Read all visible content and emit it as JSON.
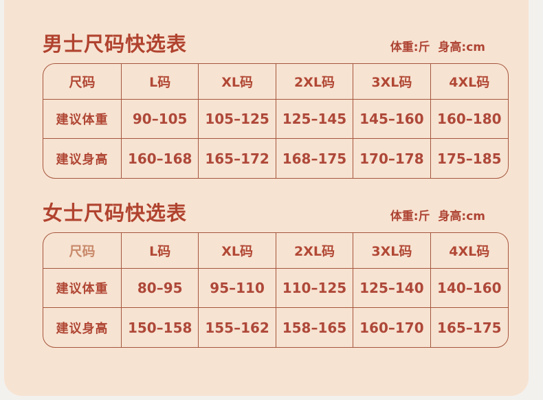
{
  "theme": {
    "outer_background": "#f3f1ee",
    "panel_background": "#f7e3d2",
    "table_border": "#a4553c",
    "title_color": "#b0432f",
    "value_color": "#ae4839",
    "muted_header_color": "#c8896a"
  },
  "sections": [
    {
      "title": "男士尺码快选表",
      "units": "体重:斤  身高:cm",
      "table": {
        "header": [
          "尺码",
          "L码",
          "XL码",
          "2XL码",
          "3XL码",
          "4XL码"
        ],
        "rows": [
          {
            "label": "建议体重",
            "values": [
              "90–105",
              "105–125",
              "125–145",
              "145–160",
              "160–180"
            ]
          },
          {
            "label": "建议身高",
            "values": [
              "160–168",
              "165–172",
              "168–175",
              "170–178",
              "175–185"
            ]
          }
        ]
      }
    },
    {
      "title": "女士尺码快选表",
      "units": "体重:斤  身高:cm",
      "table": {
        "header": [
          "尺码",
          "L码",
          "XL码",
          "2XL码",
          "3XL码",
          "4XL码"
        ],
        "rows": [
          {
            "label": "建议体重",
            "values": [
              "80–95",
              "95–110",
              "110–125",
              "125–140",
              "140–160"
            ]
          },
          {
            "label": "建议身高",
            "values": [
              "150–158",
              "155–162",
              "158–165",
              "160–170",
              "165–175"
            ]
          }
        ]
      }
    }
  ]
}
